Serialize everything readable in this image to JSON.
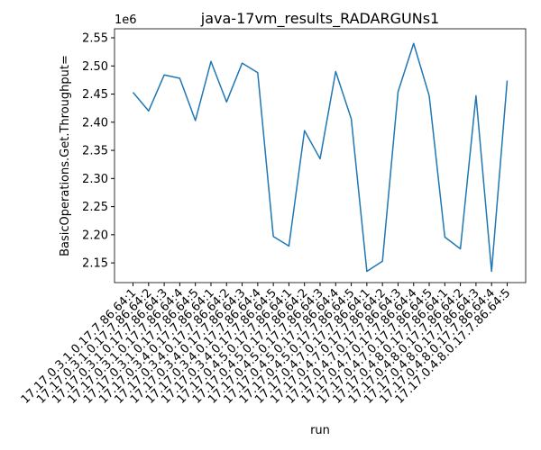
{
  "chart_data": {
    "type": "line",
    "title": "java-17vm_results_RADARGUNs1",
    "x_label": "run",
    "y_label": "BasicOperations.Get.Throughput=",
    "y_offset_label": "1e6",
    "categories": [
      "17.17.0.3.1.0.17.7.86.64:1",
      "17.17.0.3.1.0.17.7.86.64:2",
      "17.17.0.3.1.0.17.7.86.64:3",
      "17.17.0.3.1.0.17.7.86.64:4",
      "17.17.0.3.1.0.17.7.86.64:5",
      "17.17.0.3.4.0.17.7.86.64:1",
      "17.17.0.3.4.0.17.7.86.64:2",
      "17.17.0.3.4.0.17.7.86.64:3",
      "17.17.0.3.4.0.17.7.86.64:4",
      "17.17.0.3.4.0.17.7.86.64:5",
      "17.17.0.4.5.0.17.7.86.64:1",
      "17.17.0.4.5.0.17.7.86.64:2",
      "17.17.0.4.5.0.17.7.86.64:3",
      "17.17.0.4.5.0.17.7.86.64:4",
      "17.17.0.4.5.0.17.7.86.64:5",
      "17.17.0.4.7.0.17.7.86.64:1",
      "17.17.0.4.7.0.17.7.86.64:2",
      "17.17.0.4.7.0.17.7.86.64:3",
      "17.17.0.4.7.0.17.7.86.64:4",
      "17.17.0.4.7.0.17.7.86.64:5",
      "17.17.0.4.8.0.17.7.86.64:1",
      "17.17.0.4.8.0.17.7.86.64:2",
      "17.17.0.4.8.0.17.7.86.64:3",
      "17.17.0.4.8.0.17.7.86.64:4",
      "17.17.0.4.8.0.17.7.86.64:5"
    ],
    "series": [
      {
        "name": "BasicOperations.Get.Throughput=",
        "color": "#1f77b4",
        "values": [
          2.453,
          2.42,
          2.484,
          2.478,
          2.403,
          2.508,
          2.436,
          2.505,
          2.488,
          2.197,
          2.18,
          2.385,
          2.335,
          2.49,
          2.406,
          2.135,
          2.153,
          2.454,
          2.54,
          2.447,
          2.196,
          2.175,
          2.447,
          2.135,
          2.474
        ]
      }
    ],
    "ylim": [
      2.115,
      2.566
    ],
    "yticks": [
      2.15,
      {
        "value": 2.2,
        "label": "2.20"
      },
      2.25,
      {
        "value": 2.3,
        "label": "2.30"
      },
      2.35,
      {
        "value": 2.4,
        "label": "2.40"
      },
      2.45,
      {
        "value": 2.5,
        "label": "2.50"
      },
      2.55
    ],
    "grid": false
  }
}
